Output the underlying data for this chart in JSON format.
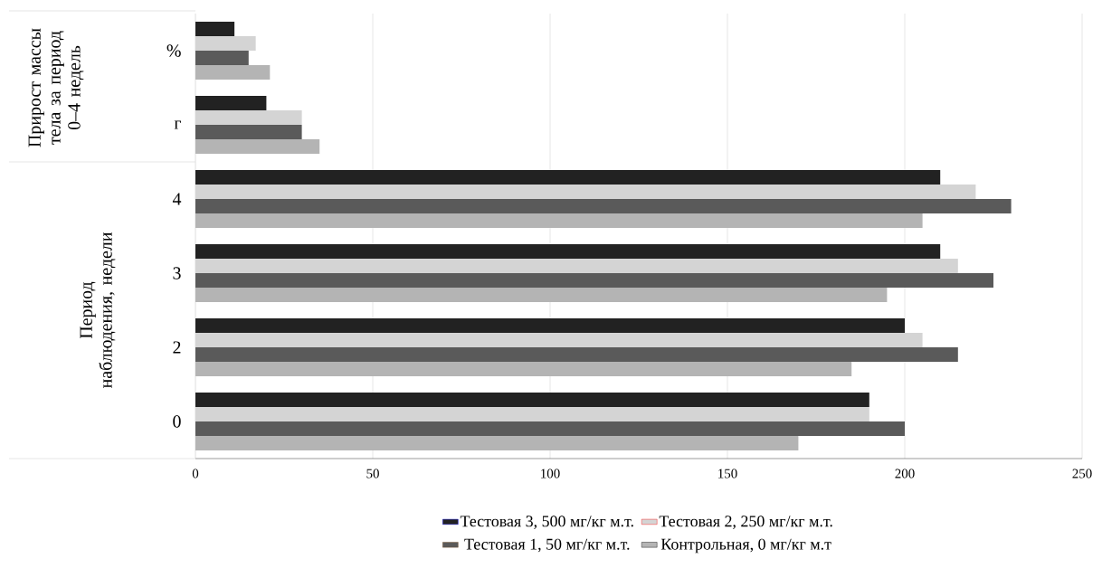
{
  "chart_data": {
    "type": "bar",
    "orientation": "horizontal",
    "categories": [
      "%",
      "г",
      "4",
      "3",
      "2",
      "0"
    ],
    "series": [
      {
        "name": "Тестовая 3, 500 мг/кг м.т.",
        "color": "#222222",
        "values": [
          11,
          20,
          210,
          210,
          200,
          190
        ]
      },
      {
        "name": "Тестовая 2, 250 мг/кг м.т.",
        "color": "#d4d4d4",
        "values": [
          17,
          30,
          220,
          215,
          205,
          190
        ]
      },
      {
        "name": "Тестовая 1, 50 мг/кг м.т.",
        "color": "#5a5a5a",
        "values": [
          15,
          30,
          230,
          225,
          215,
          200
        ]
      },
      {
        "name": "Контрольная, 0 мг/кг м.т",
        "color": "#b4b4b4",
        "values": [
          21,
          35,
          205,
          195,
          185,
          170
        ]
      }
    ],
    "xlim": [
      0,
      250
    ],
    "xticks": [
      0,
      50,
      100,
      150,
      200,
      250
    ],
    "grid": "x",
    "legend": "bottom",
    "annotations": [
      "Прирост массы тела за период 0–4 недель",
      "Период наблюдения, недели"
    ]
  }
}
